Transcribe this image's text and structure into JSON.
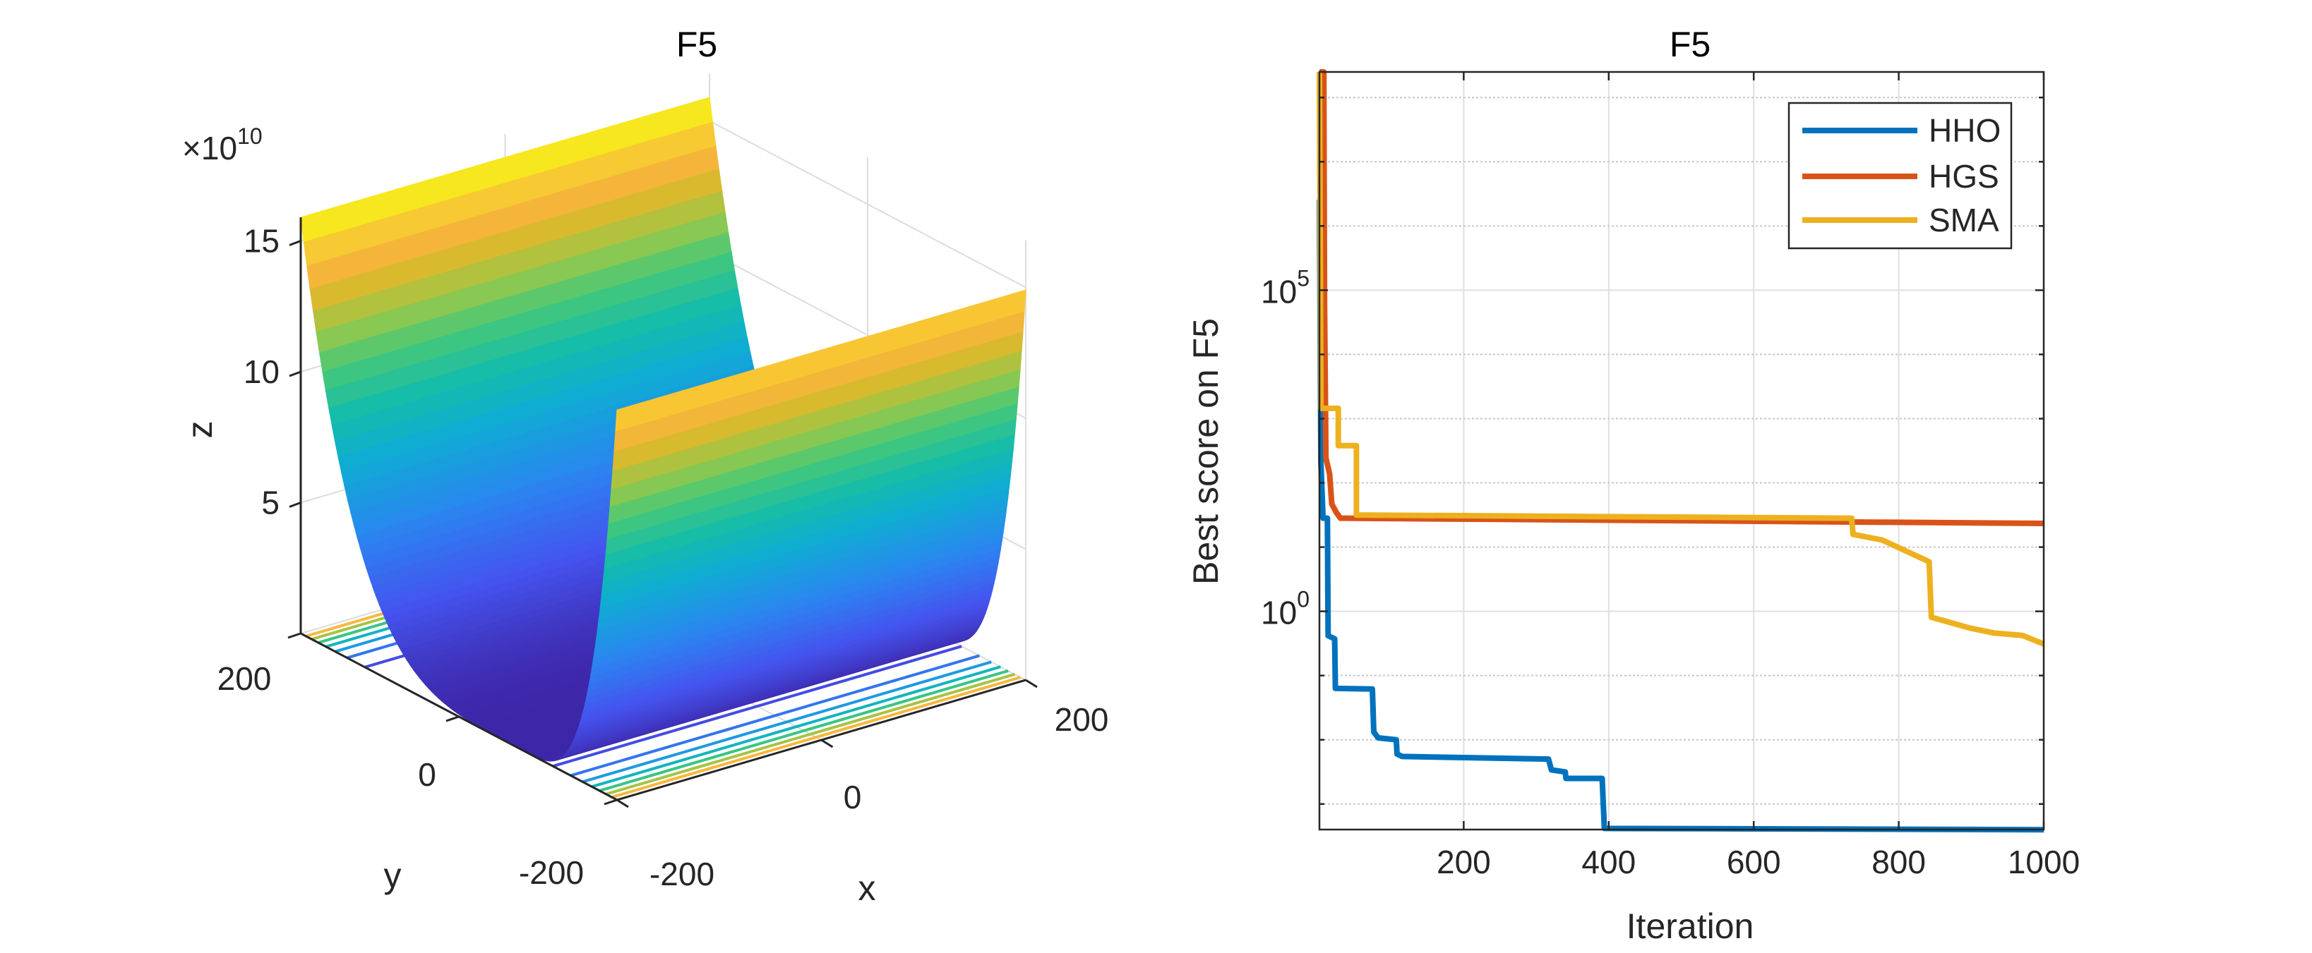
{
  "chart_data": [
    {
      "type": "surface",
      "title": "F5",
      "xlabel": "x",
      "ylabel": "y",
      "zlabel": "z",
      "xlim": [
        -200,
        200
      ],
      "ylim": [
        -200,
        200
      ],
      "zlim": [
        0,
        160000000000.0
      ],
      "xticks": [
        -200,
        0,
        200
      ],
      "xtick_labels": [
        "-200",
        "0",
        "200"
      ],
      "yticks": [
        200,
        0,
        -200
      ],
      "ytick_labels": [
        "200",
        "0",
        "-200"
      ],
      "zticks": [
        5,
        10,
        15
      ],
      "ztick_labels": [
        "5",
        "10",
        "15"
      ],
      "z_multiplier": {
        "prefix": "×10",
        "exponent": "10"
      },
      "contour_levels": [
        20000000000.0,
        40000000000.0,
        60000000000.0,
        80000000000.0,
        100000000000.0,
        120000000000.0,
        140000000000.0
      ],
      "colormap": "parula",
      "grid": true
    },
    {
      "type": "line",
      "title": "F5",
      "xlabel": "Iteration",
      "ylabel": "Best score on F5",
      "xlim": [
        1,
        1000
      ],
      "ylim": [
        0.0004,
        250000000
      ],
      "yscale": "log",
      "xticks": [
        200,
        400,
        600,
        800,
        1000
      ],
      "xtick_labels": [
        "200",
        "400",
        "600",
        "800",
        "1000"
      ],
      "yticks": [
        1,
        100000
      ],
      "ytick_labels": [
        {
          "base": "10",
          "exponent": "0"
        },
        {
          "base": "10",
          "exponent": "5"
        }
      ],
      "grid": true,
      "legend_position": "top-right",
      "series": [
        {
          "name": "HHO",
          "color": "#0072BD",
          "points": [
            [
              1,
              2570000
            ],
            [
              3,
              204
            ],
            [
              6,
              28.2
            ],
            [
              12,
              28.2
            ],
            [
              13,
              0.417
            ],
            [
              22,
              0.372
            ],
            [
              23,
              0.063
            ],
            [
              74,
              0.0617
            ],
            [
              76,
              0.0132
            ],
            [
              82,
              0.0107
            ],
            [
              107,
              0.01
            ],
            [
              108,
              0.006
            ],
            [
              115,
              0.0055
            ],
            [
              317,
              0.005
            ],
            [
              321,
              0.0034
            ],
            [
              340,
              0.00316
            ],
            [
              341,
              0.0025
            ],
            [
              391,
              0.0025
            ],
            [
              394,
              0.000417
            ],
            [
              1000,
              0.000398
            ]
          ]
        },
        {
          "name": "HGS",
          "color": "#D95319",
          "points": [
            [
              1,
              250000000
            ],
            [
              7,
              250000000
            ],
            [
              8,
              68000
            ],
            [
              10,
              245
            ],
            [
              15,
              138
            ],
            [
              18,
              47
            ],
            [
              24,
              35
            ],
            [
              30,
              28.2
            ],
            [
              1000,
              23.4
            ]
          ]
        },
        {
          "name": "SMA",
          "color": "#EDB120",
          "points": [
            [
              1,
              250000000
            ],
            [
              3,
              1445
            ],
            [
              27,
              1445
            ],
            [
              27,
              380
            ],
            [
              52,
              380
            ],
            [
              52,
              31.6
            ],
            [
              735,
              28.2
            ],
            [
              737,
              15.8
            ],
            [
              777,
              12.9
            ],
            [
              810,
              8.7
            ],
            [
              842,
              5.9
            ],
            [
              845,
              0.81
            ],
            [
              898,
              0.55
            ],
            [
              931,
              0.46
            ],
            [
              971,
              0.42
            ],
            [
              1000,
              0.31
            ]
          ]
        }
      ]
    }
  ]
}
